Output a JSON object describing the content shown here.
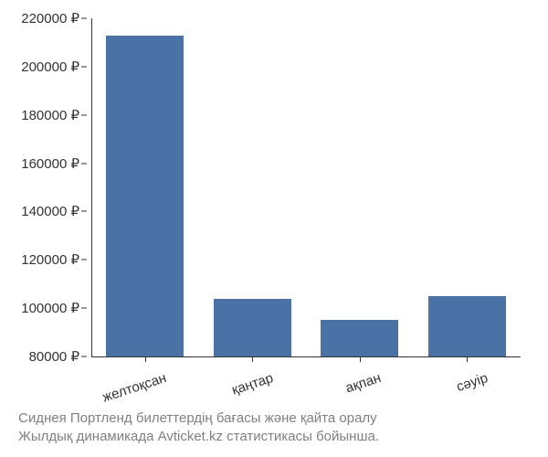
{
  "chart": {
    "type": "bar",
    "categories": [
      "желтоқсан",
      "қаңтар",
      "ақпан",
      "сәуір"
    ],
    "values": [
      213000,
      104000,
      95000,
      105000
    ],
    "bar_color": "#4a72a5",
    "background_color": "#ffffff",
    "axis_color": "#333333",
    "ylim": [
      80000,
      220000
    ],
    "ytick_step": 20000,
    "ytick_labels": [
      "80000 ₽",
      "100000 ₽",
      "120000 ₽",
      "140000 ₽",
      "160000 ₽",
      "180000 ₽",
      "200000 ₽",
      "220000 ₽"
    ],
    "ytick_values": [
      80000,
      100000,
      120000,
      140000,
      160000,
      180000,
      200000,
      220000
    ],
    "label_fontsize": 15,
    "caption_fontsize": 15,
    "caption_color": "#808080",
    "bar_width_ratio": 0.72,
    "x_label_rotation": -18
  },
  "caption_line1": "Сиднея Портленд билеттердің бағасы және қайта оралу",
  "caption_line2": "Жылдық динамикада Avticket.kz статистикасы бойынша."
}
